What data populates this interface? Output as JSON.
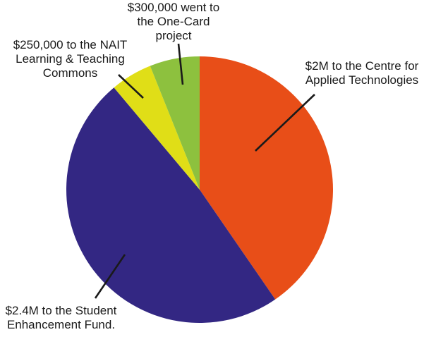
{
  "chart_data": {
    "type": "pie",
    "title": "",
    "start_angle_deg": 0,
    "direction": "clockwise",
    "legend_position": "none",
    "total_value": 4950000,
    "ink": "#1A1A1A",
    "background": "#FFFFFF",
    "slices": [
      {
        "id": "applied-technologies",
        "label": "$2M to the Centre for\nApplied Technologies",
        "amount_display": "$2M",
        "value": 2000000,
        "percent": 40.4,
        "color": "#E84E18"
      },
      {
        "id": "student-enhancement-fund",
        "label": "$2.4M to the Student\nEnhancement Fund.",
        "amount_display": "$2.4M",
        "value": 2400000,
        "percent": 48.5,
        "color": "#332783"
      },
      {
        "id": "nait-learning-commons",
        "label": "$250,000 to the NAIT\nLearning & Teaching\nCommons",
        "amount_display": "$250,000",
        "value": 250000,
        "percent": 5.1,
        "color": "#E0DE17"
      },
      {
        "id": "one-card-project",
        "label": "$300,000 went to\nthe One-Card\nproject",
        "amount_display": "$300,000",
        "value": 300000,
        "percent": 6.1,
        "color": "#8DC13E"
      }
    ]
  }
}
